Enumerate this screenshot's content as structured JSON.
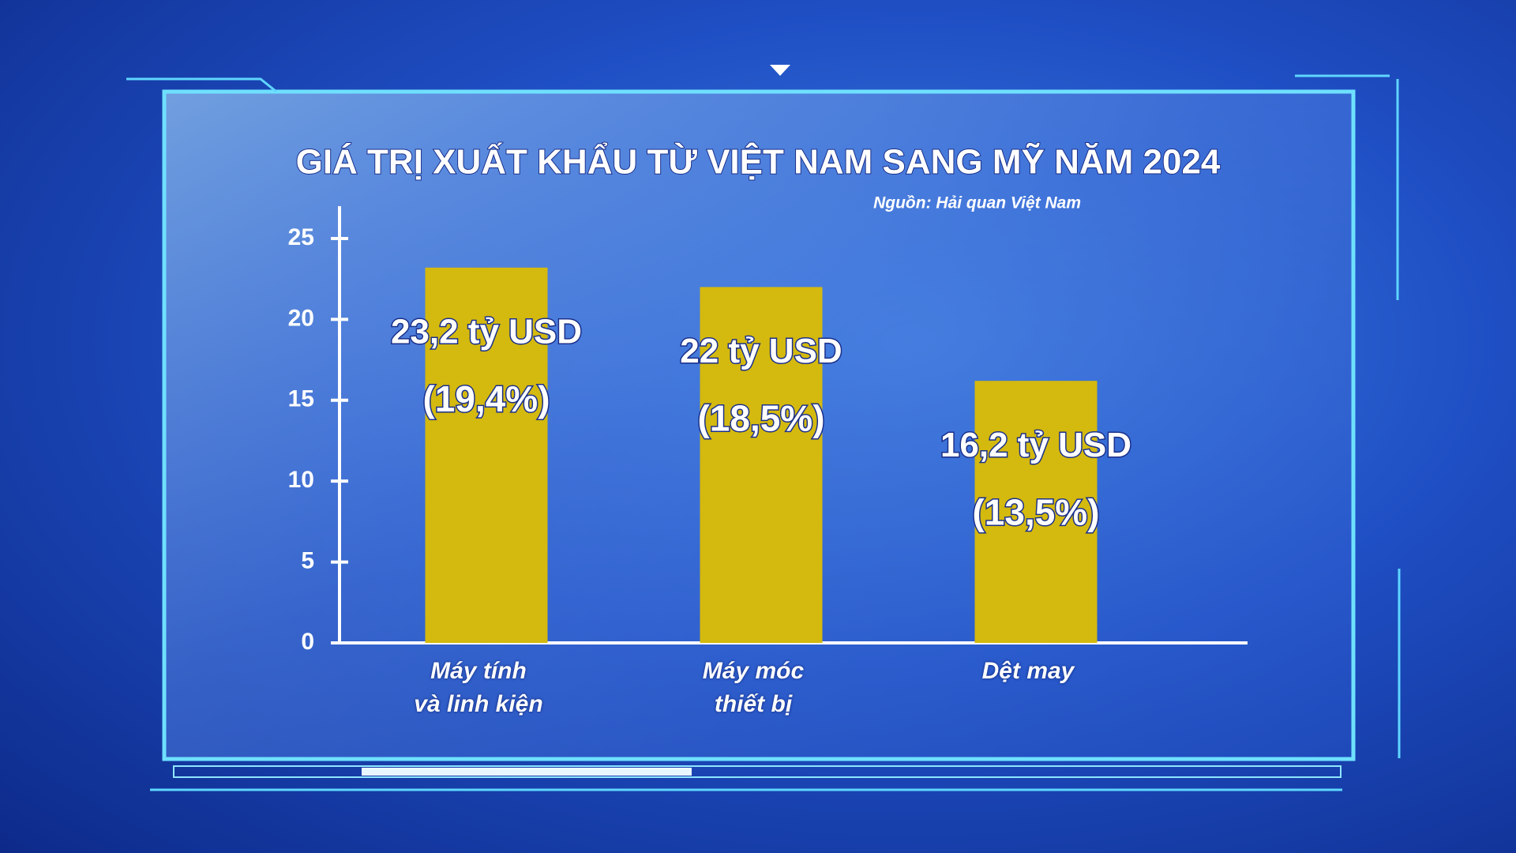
{
  "chart_data": {
    "type": "bar",
    "title": "GIÁ TRỊ XUẤT KHẨU TỪ VIỆT NAM SANG MỸ NĂM 2024",
    "subtitle": "Nguồn: Hải quan Việt Nam",
    "categories": [
      "Máy tính\nvà linh kiện",
      "Máy móc\nthiết bị",
      "Dệt may"
    ],
    "values": [
      23.2,
      22,
      16.2
    ],
    "value_labels": [
      "23,2 tỷ USD",
      "22 tỷ USD",
      "16,2 tỷ USD"
    ],
    "share_labels": [
      "(19,4%)",
      "(18,5%)",
      "(13,5%)"
    ],
    "color": "#d4b90f",
    "ylim": [
      0,
      27
    ],
    "yticks": [
      0,
      5,
      10,
      15,
      20,
      25
    ],
    "grid": false
  }
}
